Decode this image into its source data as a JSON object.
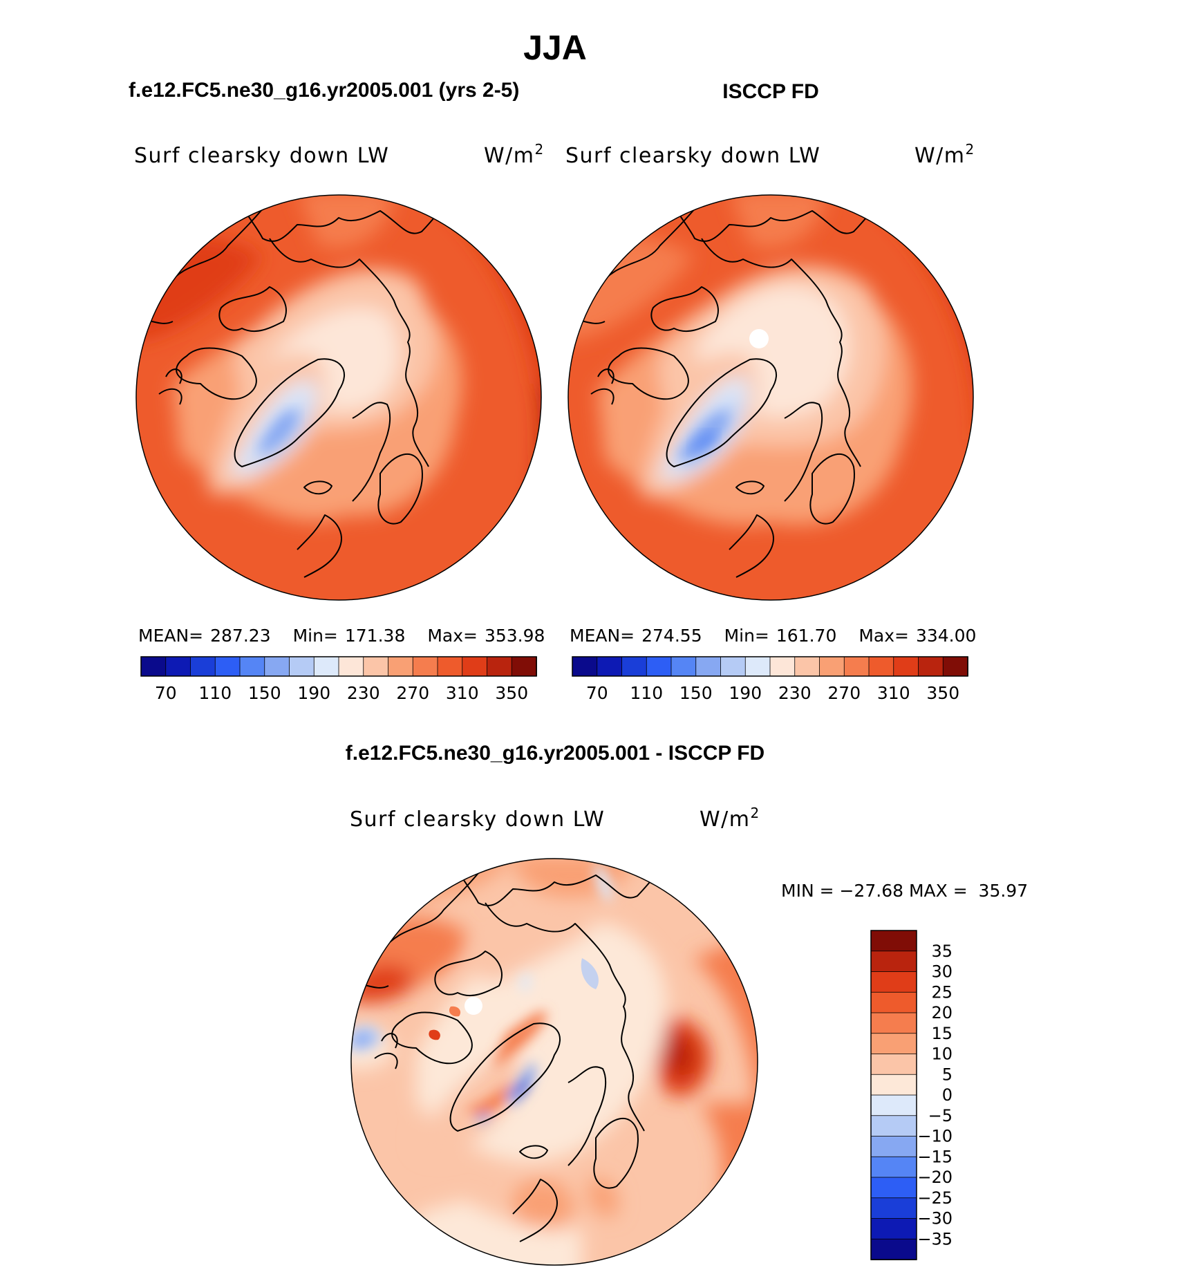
{
  "title": "JJA",
  "chart_data": [
    {
      "type": "heatmap",
      "projection": "north-polar-stereographic",
      "case_title": "f.e12.FC5.ne30_g16.yr2005.001 (yrs 2-5)",
      "variable": "Surf clearsky down LW",
      "units": "W/m",
      "units_exp": "2",
      "stats": {
        "mean_label": "MEAN=",
        "mean": "287.23",
        "min_label": "Min=",
        "min": "171.38",
        "max_label": "Max=",
        "max": "353.98"
      },
      "colorbar": {
        "orientation": "horizontal",
        "levels": [
          70,
          90,
          110,
          130,
          150,
          170,
          190,
          210,
          230,
          250,
          270,
          290,
          310,
          330,
          350
        ],
        "tick_labels": [
          "70",
          "110",
          "150",
          "190",
          "230",
          "270",
          "310",
          "350"
        ],
        "colors": [
          "#0a0a8c",
          "#0d1ab4",
          "#1a3ed8",
          "#2d5ef5",
          "#5585f5",
          "#87a8f2",
          "#b5cbf5",
          "#dde9fa",
          "#fde6d8",
          "#fbc5a8",
          "#f9a074",
          "#f57d4e",
          "#ee5b2c",
          "#e03d18",
          "#b9240e",
          "#800d06"
        ]
      },
      "min_value": 171.38,
      "max_value": 353.98
    },
    {
      "type": "heatmap",
      "projection": "north-polar-stereographic",
      "case_title": "ISCCP FD",
      "variable": "Surf clearsky down LW",
      "units": "W/m",
      "units_exp": "2",
      "stats": {
        "mean_label": "MEAN=",
        "mean": "274.55",
        "min_label": "Min=",
        "min": "161.70",
        "max_label": "Max=",
        "max": "334.00"
      },
      "colorbar": {
        "orientation": "horizontal",
        "levels": [
          70,
          90,
          110,
          130,
          150,
          170,
          190,
          210,
          230,
          250,
          270,
          290,
          310,
          330,
          350
        ],
        "tick_labels": [
          "70",
          "110",
          "150",
          "190",
          "230",
          "270",
          "310",
          "350"
        ],
        "colors": [
          "#0a0a8c",
          "#0d1ab4",
          "#1a3ed8",
          "#2d5ef5",
          "#5585f5",
          "#87a8f2",
          "#b5cbf5",
          "#dde9fa",
          "#fde6d8",
          "#fbc5a8",
          "#f9a074",
          "#f57d4e",
          "#ee5b2c",
          "#e03d18",
          "#b9240e",
          "#800d06"
        ]
      },
      "min_value": 161.7,
      "max_value": 334.0
    },
    {
      "type": "heatmap",
      "projection": "north-polar-stereographic",
      "case_title": "f.e12.FC5.ne30_g16.yr2005.001 - ISCCP FD",
      "variable": "Surf clearsky down LW",
      "units": "W/m",
      "units_exp": "2",
      "minmax_label": "MIN = −27.68 MAX =  35.97",
      "min_value": -27.68,
      "max_value": 35.97,
      "colorbar": {
        "orientation": "vertical",
        "levels": [
          35,
          30,
          25,
          20,
          15,
          10,
          5,
          0,
          -5,
          -10,
          -15,
          -20,
          -25,
          -30,
          -35
        ],
        "tick_labels": [
          "35",
          "30",
          "25",
          "20",
          "15",
          "10",
          "5",
          "0",
          "−5",
          "−10",
          "−15",
          "−20",
          "−25",
          "−30",
          "−35"
        ],
        "colors": [
          "#800d06",
          "#b9240e",
          "#e03d18",
          "#ee5b2c",
          "#f57d4e",
          "#f9a074",
          "#fbc5a8",
          "#fde8d8",
          "#dde9fa",
          "#b5cbf5",
          "#87a8f2",
          "#5585f5",
          "#2d5ef5",
          "#1a3ed8",
          "#0d1ab4",
          "#0a0a8c"
        ]
      }
    }
  ]
}
